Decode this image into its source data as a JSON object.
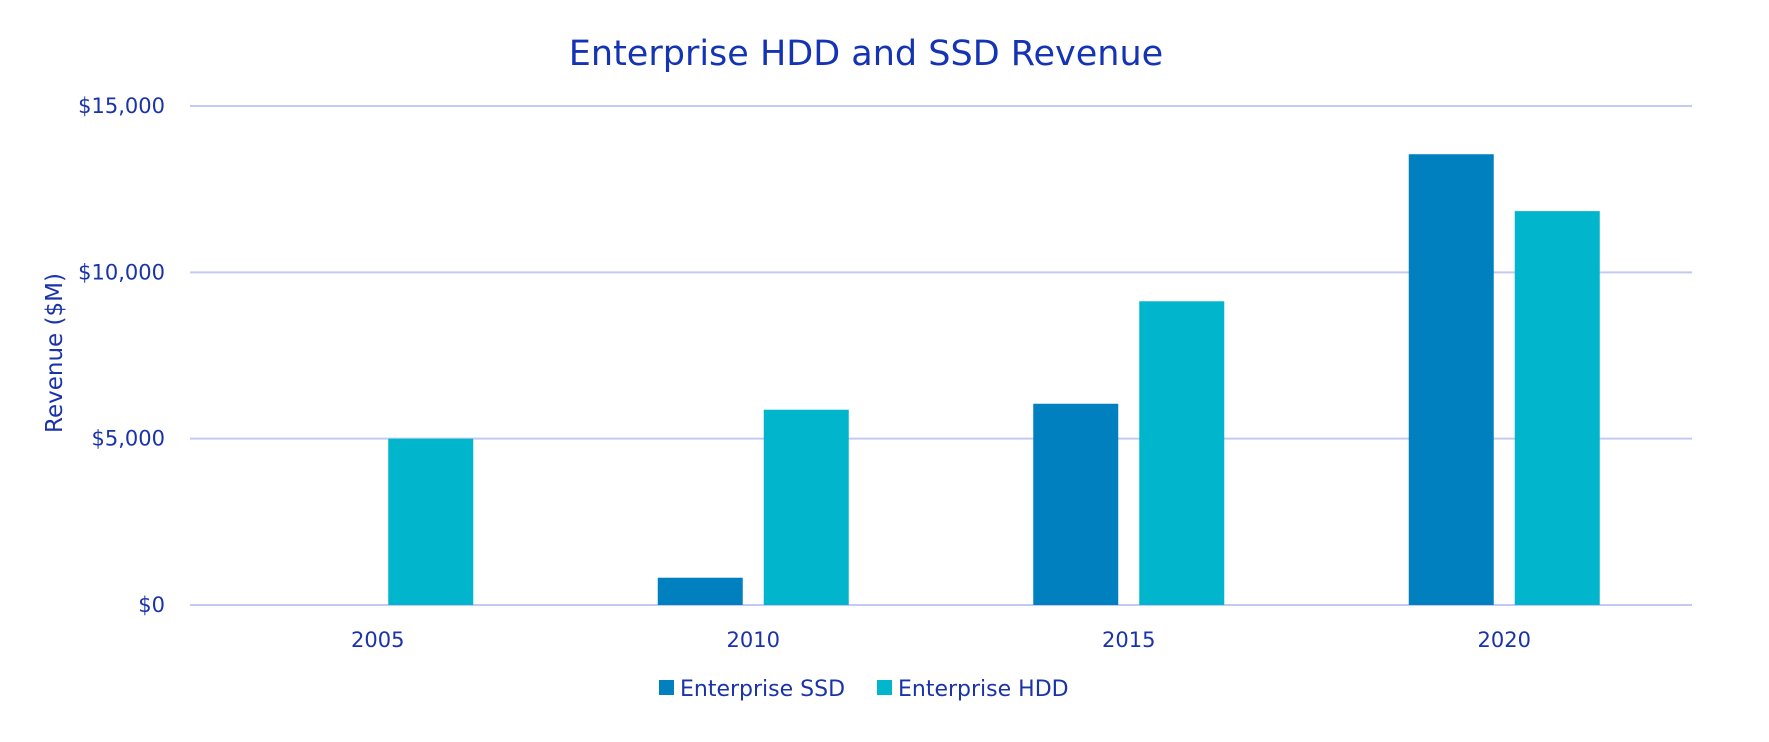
{
  "chart_data": {
    "type": "bar",
    "title": "Enterprise HDD and SSD Revenue",
    "xlabel": "",
    "ylabel": "Revenue ($M)",
    "ylim": [
      0,
      15000
    ],
    "yticks": [
      0,
      5000,
      10000,
      15000
    ],
    "ytick_labels": [
      "$0",
      "$5,000",
      "$10,000",
      "$15,000"
    ],
    "grid": true,
    "legend_position": "bottom",
    "categories": [
      "2005",
      "2010",
      "2015",
      "2020"
    ],
    "series": [
      {
        "name": "Enterprise SSD",
        "color": "#0080bf",
        "values": [
          0,
          820,
          6050,
          13550
        ]
      },
      {
        "name": "Enterprise HDD",
        "color": "#00b5cc",
        "values": [
          5000,
          5870,
          9130,
          11840
        ]
      }
    ]
  }
}
